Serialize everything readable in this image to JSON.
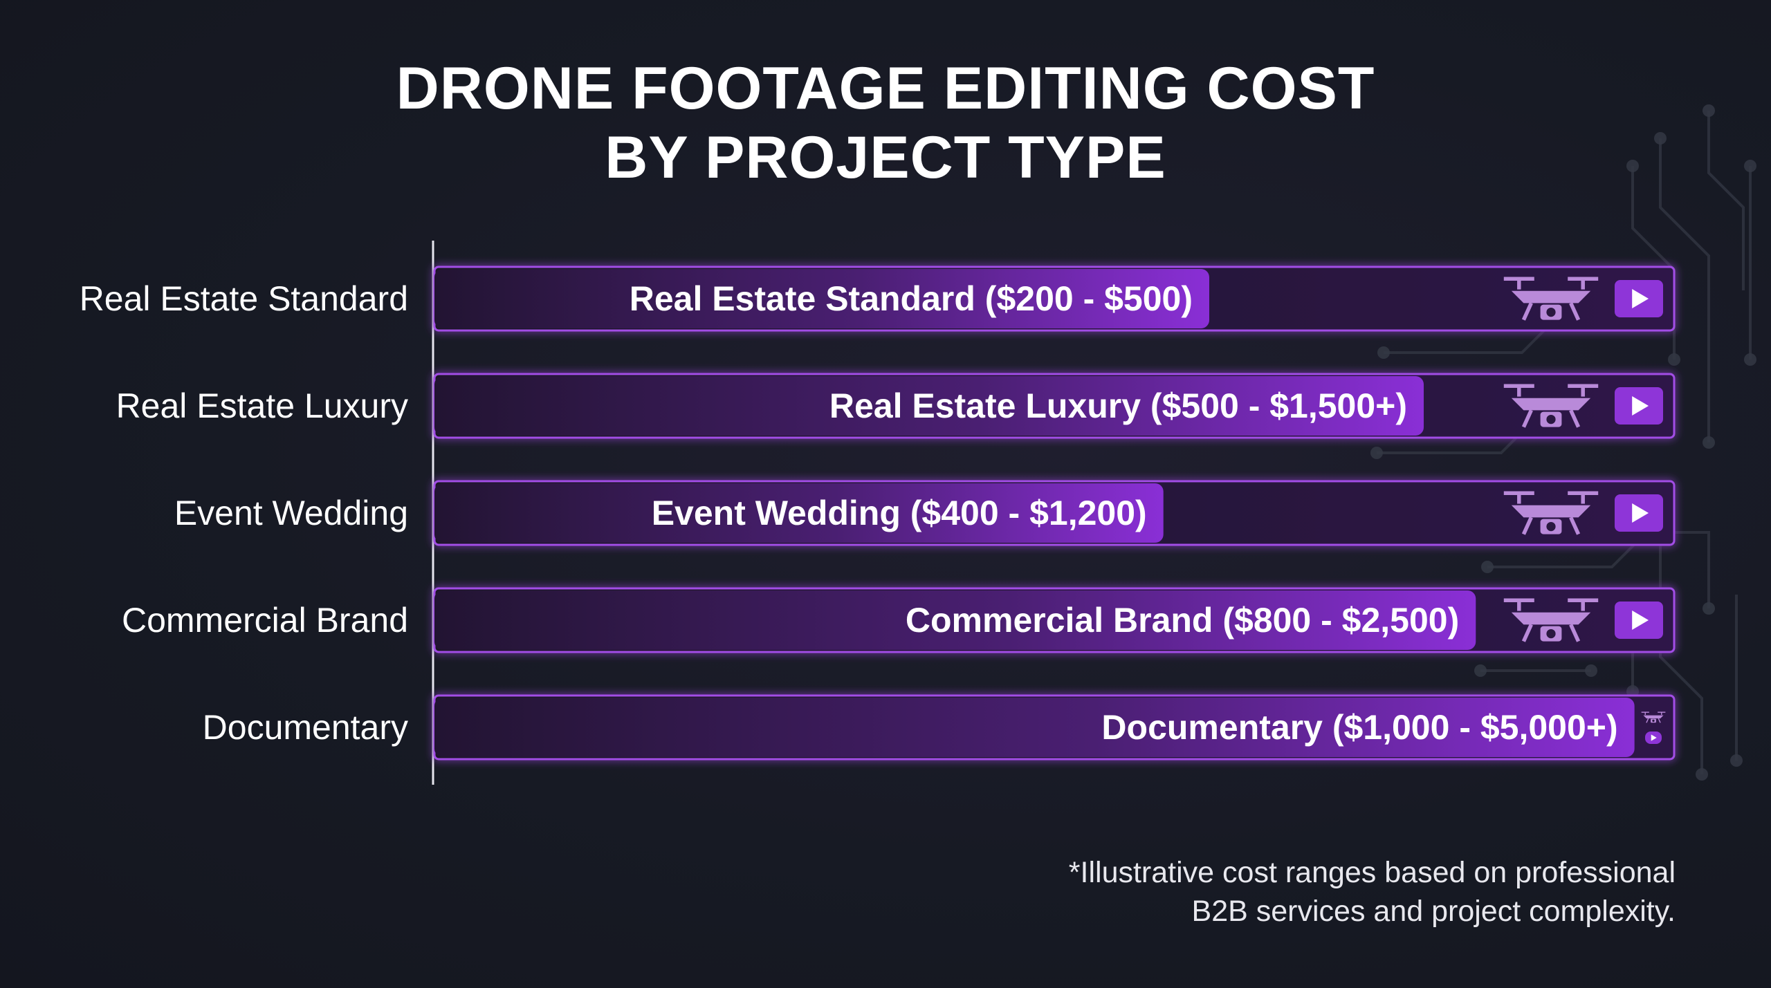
{
  "title": {
    "line1": "DRONE FOOTAGE EDITING COST",
    "line2": "BY PROJECT TYPE"
  },
  "colors": {
    "background": "#171a24",
    "accent": "#8a2fd6",
    "bar_track": "#2a1840",
    "bar_outline": "#a24ee6",
    "play_button": "#8e35d8",
    "drone_icon": "#b98ad9",
    "circuit": "#3a3d48"
  },
  "chart_data": {
    "type": "bar",
    "orientation": "horizontal",
    "categories": [
      "Real Estate Standard",
      "Real Estate Luxury",
      "Event Wedding",
      "Commercial Brand",
      "Documentary"
    ],
    "data_labels": [
      "Real Estate Standard ($200 - $500)",
      "Real Estate Luxury ($500 - $1,500+)",
      "Event Wedding ($400 - $1,200)",
      "Commercial Brand ($800 - $2,500)",
      "Documentary ($1,000 - $5,000+)"
    ],
    "ranges": [
      [
        200,
        500
      ],
      [
        500,
        1500
      ],
      [
        400,
        1200
      ],
      [
        800,
        2500
      ],
      [
        1000,
        5000
      ]
    ],
    "fill_fraction": [
      0.625,
      0.798,
      0.588,
      0.84,
      0.968
    ],
    "icons": [
      "drone-icon",
      "play-icon"
    ],
    "grid": false,
    "legend": "none"
  },
  "footnote": {
    "line1": "*Illustrative cost ranges based on professional",
    "line2": "B2B services and project complexity."
  }
}
